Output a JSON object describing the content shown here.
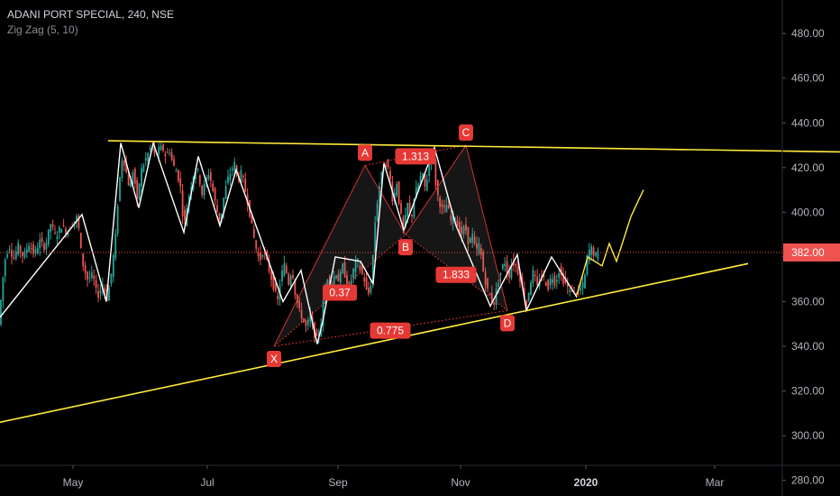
{
  "legend": {
    "symbol": "ADANI PORT SPECIAL, 240, NSE",
    "indicator": "Zig Zag (5, 10)"
  },
  "colors": {
    "background": "#000000",
    "up": "#26a69a",
    "down": "#ef5350",
    "zigzag": "#ffffff",
    "trendline": "#ffeb3b",
    "harmonic": "#e53935",
    "label_bg": "#e53935"
  },
  "chart_data": {
    "type": "candlestick",
    "y_range": [
      273,
      495
    ],
    "y_ticks": [
      480,
      460,
      440,
      420,
      400,
      380,
      360,
      340,
      320,
      300,
      280
    ],
    "y_tick_labels": [
      "480.00",
      "460.00",
      "440.00",
      "420.00",
      "400.00",
      "380.00",
      "360.00",
      "340.00",
      "320.00",
      "300.00",
      "280.00"
    ],
    "x_ticks": [
      {
        "label": "May",
        "bold": false
      },
      {
        "label": "Jul",
        "bold": false
      },
      {
        "label": "Sep",
        "bold": false
      },
      {
        "label": "Nov",
        "bold": false
      },
      {
        "label": "2020",
        "bold": true
      },
      {
        "label": "Mar",
        "bold": false
      }
    ],
    "last_price": 382,
    "last_price_label": "382.00",
    "price_path": [
      [
        0,
        356
      ],
      [
        5,
        378
      ],
      [
        10,
        385
      ],
      [
        15,
        379
      ],
      [
        20,
        385
      ],
      [
        26,
        380
      ],
      [
        32,
        386
      ],
      [
        38,
        381
      ],
      [
        44,
        387
      ],
      [
        50,
        384
      ],
      [
        56,
        395
      ],
      [
        62,
        389
      ],
      [
        68,
        394
      ],
      [
        74,
        391
      ],
      [
        80,
        395
      ],
      [
        86,
        398
      ],
      [
        91,
        378
      ],
      [
        97,
        370
      ],
      [
        103,
        372
      ],
      [
        108,
        362
      ],
      [
        114,
        368
      ],
      [
        119,
        361
      ],
      [
        124,
        374
      ],
      [
        128,
        388
      ],
      [
        132,
        412
      ],
      [
        136,
        426
      ],
      [
        140,
        418
      ],
      [
        144,
        410
      ],
      [
        148,
        420
      ],
      [
        152,
        404
      ],
      [
        156,
        418
      ],
      [
        160,
        422
      ],
      [
        164,
        426
      ],
      [
        168,
        430
      ],
      [
        172,
        425
      ],
      [
        176,
        428
      ],
      [
        180,
        429
      ],
      [
        184,
        425
      ],
      [
        188,
        428
      ],
      [
        192,
        421
      ],
      [
        196,
        418
      ],
      [
        200,
        412
      ],
      [
        204,
        393
      ],
      [
        208,
        404
      ],
      [
        212,
        412
      ],
      [
        216,
        419
      ],
      [
        220,
        418
      ],
      [
        224,
        408
      ],
      [
        228,
        414
      ],
      [
        232,
        418
      ],
      [
        236,
        410
      ],
      [
        240,
        402
      ],
      [
        244,
        395
      ],
      [
        248,
        406
      ],
      [
        252,
        414
      ],
      [
        256,
        418
      ],
      [
        260,
        422
      ],
      [
        264,
        414
      ],
      [
        268,
        418
      ],
      [
        272,
        410
      ],
      [
        276,
        402
      ],
      [
        280,
        392
      ],
      [
        284,
        384
      ],
      [
        288,
        378
      ],
      [
        292,
        383
      ],
      [
        296,
        378
      ],
      [
        300,
        372
      ],
      [
        304,
        366
      ],
      [
        308,
        360
      ],
      [
        312,
        372
      ],
      [
        316,
        377
      ],
      [
        320,
        368
      ],
      [
        324,
        375
      ],
      [
        328,
        362
      ],
      [
        332,
        356
      ],
      [
        336,
        352
      ],
      [
        340,
        348
      ],
      [
        344,
        354
      ],
      [
        348,
        346
      ],
      [
        352,
        343
      ],
      [
        356,
        350
      ],
      [
        360,
        364
      ],
      [
        364,
        372
      ],
      [
        368,
        366
      ],
      [
        372,
        374
      ],
      [
        376,
        369
      ],
      [
        380,
        376
      ],
      [
        384,
        370
      ],
      [
        388,
        366
      ],
      [
        392,
        374
      ],
      [
        396,
        379
      ],
      [
        400,
        374
      ],
      [
        404,
        370
      ],
      [
        408,
        362
      ],
      [
        412,
        369
      ],
      [
        416,
        395
      ],
      [
        420,
        410
      ],
      [
        424,
        418
      ],
      [
        428,
        422
      ],
      [
        432,
        418
      ],
      [
        436,
        404
      ],
      [
        440,
        414
      ],
      [
        444,
        400
      ],
      [
        448,
        392
      ],
      [
        452,
        404
      ],
      [
        456,
        396
      ],
      [
        460,
        408
      ],
      [
        464,
        412
      ],
      [
        468,
        418
      ],
      [
        472,
        410
      ],
      [
        476,
        422
      ],
      [
        480,
        428
      ],
      [
        484,
        410
      ],
      [
        488,
        404
      ],
      [
        492,
        400
      ],
      [
        496,
        404
      ],
      [
        500,
        396
      ],
      [
        504,
        400
      ],
      [
        508,
        393
      ],
      [
        512,
        390
      ],
      [
        516,
        394
      ],
      [
        520,
        386
      ],
      [
        524,
        390
      ],
      [
        528,
        382
      ],
      [
        532,
        386
      ],
      [
        536,
        374
      ],
      [
        540,
        366
      ],
      [
        544,
        362
      ],
      [
        548,
        359
      ],
      [
        552,
        368
      ],
      [
        556,
        374
      ],
      [
        560,
        378
      ],
      [
        564,
        370
      ],
      [
        568,
        378
      ],
      [
        572,
        376
      ],
      [
        576,
        372
      ],
      [
        580,
        366
      ],
      [
        584,
        358
      ],
      [
        588,
        368
      ],
      [
        592,
        374
      ],
      [
        596,
        366
      ],
      [
        600,
        372
      ],
      [
        604,
        370
      ],
      [
        608,
        366
      ],
      [
        612,
        372
      ],
      [
        616,
        368
      ],
      [
        620,
        374
      ],
      [
        624,
        370
      ],
      [
        628,
        368
      ],
      [
        632,
        364
      ],
      [
        636,
        366
      ],
      [
        640,
        363
      ],
      [
        644,
        366
      ],
      [
        648,
        368
      ],
      [
        652,
        382
      ],
      [
        656,
        384
      ],
      [
        660,
        380
      ],
      [
        664,
        382
      ]
    ],
    "zigzag": [
      [
        0,
        353
      ],
      [
        91,
        399
      ],
      [
        118,
        360
      ],
      [
        134,
        431
      ],
      [
        154,
        402
      ],
      [
        170,
        431
      ],
      [
        204,
        391
      ],
      [
        220,
        425
      ],
      [
        244,
        394
      ],
      [
        262,
        419
      ],
      [
        314,
        360
      ],
      [
        334,
        374
      ],
      [
        352,
        341
      ],
      [
        358,
        351
      ],
      [
        372,
        380
      ],
      [
        400,
        378
      ],
      [
        414,
        368
      ],
      [
        426,
        422
      ],
      [
        448,
        392
      ],
      [
        482,
        429
      ],
      [
        506,
        394
      ],
      [
        544,
        358
      ],
      [
        574,
        381
      ],
      [
        584,
        356
      ],
      [
        612,
        380
      ],
      [
        640,
        362
      ]
    ],
    "projection": [
      [
        640,
        363
      ],
      [
        652,
        380
      ],
      [
        668,
        376
      ],
      [
        676,
        386
      ],
      [
        684,
        378
      ],
      [
        692,
        388
      ],
      [
        700,
        398
      ],
      [
        708,
        405
      ],
      [
        714,
        410
      ]
    ],
    "trendlines": [
      {
        "from": [
          120,
          432
        ],
        "to": [
          932,
          427
        ]
      },
      {
        "from": [
          0,
          306
        ],
        "to": [
          830,
          377
        ]
      }
    ],
    "harmonic_points": [
      {
        "label": "X",
        "x": 304,
        "price": 340
      },
      {
        "label": "A",
        "x": 405,
        "price": 421
      },
      {
        "label": "B",
        "x": 450,
        "price": 390
      },
      {
        "label": "C",
        "x": 517,
        "price": 430
      },
      {
        "label": "D",
        "x": 563,
        "price": 356
      }
    ],
    "ratios": [
      {
        "label": "0.37",
        "x": 377,
        "price": 364
      },
      {
        "label": "0.775",
        "x": 433,
        "price": 347
      },
      {
        "label": "1.313",
        "x": 461,
        "price": 425
      },
      {
        "label": "1.833",
        "x": 506,
        "price": 372
      }
    ]
  }
}
